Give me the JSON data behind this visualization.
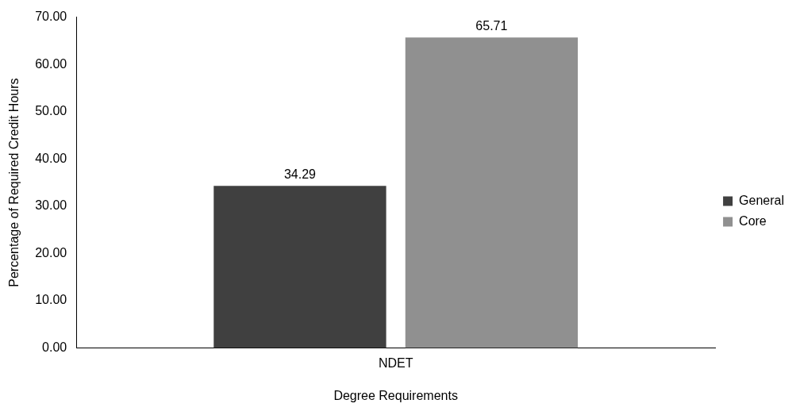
{
  "chart_data": {
    "type": "bar",
    "xlabel": "Degree Requirements",
    "ylabel": "Percentage of Required Credit Hours",
    "categories": [
      "NDET"
    ],
    "series": [
      {
        "name": "General",
        "color": "#404040",
        "values": [
          34.29
        ]
      },
      {
        "name": "Core",
        "color": "#909090",
        "values": [
          65.71
        ]
      }
    ],
    "ylim": [
      0,
      70
    ],
    "yticks": [
      {
        "value": 0,
        "label": "0.00"
      },
      {
        "value": 10,
        "label": "10.00"
      },
      {
        "value": 20,
        "label": "20.00"
      },
      {
        "value": 30,
        "label": "30.00"
      },
      {
        "value": 40,
        "label": "40.00"
      },
      {
        "value": 50,
        "label": "50.00"
      },
      {
        "value": 60,
        "label": "60.00"
      },
      {
        "value": 70,
        "label": "70.00"
      }
    ],
    "grid": false,
    "legend": "right",
    "data_labels": true
  }
}
